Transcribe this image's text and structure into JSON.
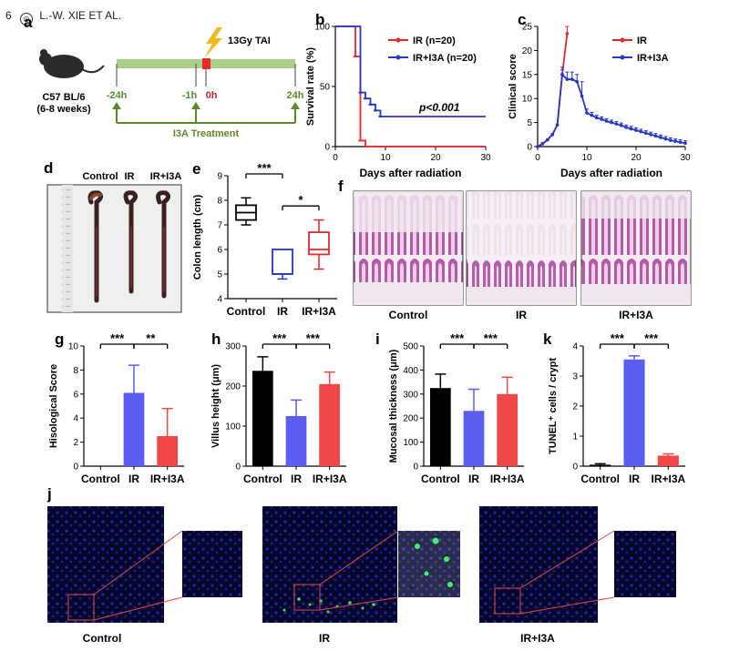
{
  "header": {
    "page_number": "6",
    "running_title": "L.-W. XIE ET AL."
  },
  "panels": {
    "a": {
      "letter": "a",
      "mouse_strain": "C57 BL/6",
      "mouse_age": "(6-8 weeks)",
      "event_label": "13Gy TAI",
      "time_labels": [
        "-24h",
        "-1h",
        "0h",
        "24h"
      ],
      "treatment_label": "I3A Treatment"
    },
    "d": {
      "letter": "d",
      "group_labels": [
        "Control",
        "IR",
        "IR+I3A"
      ]
    },
    "f": {
      "letter": "f",
      "group_labels": [
        "Control",
        "IR",
        "IR+I3A"
      ]
    },
    "j": {
      "letter": "j",
      "group_labels": [
        "Control",
        "IR",
        "IR+I3A"
      ]
    }
  },
  "chart_data": [
    {
      "panel": "b",
      "type": "line",
      "xlabel": "Days after radiation",
      "ylabel": "Survival rate (%)",
      "xlim": [
        0,
        30
      ],
      "ylim": [
        0,
        100
      ],
      "xticks": [
        0,
        10,
        20,
        30
      ],
      "yticks": [
        0,
        50,
        100
      ],
      "annotation": "p<0.001",
      "legend_position": "top-right",
      "series": [
        {
          "name": "IR (n=20)",
          "color": "#e8262b",
          "step": [
            [
              0,
              100
            ],
            [
              4,
              100
            ],
            [
              4,
              75
            ],
            [
              5,
              75
            ],
            [
              5,
              5
            ],
            [
              6,
              5
            ],
            [
              6,
              0
            ],
            [
              30,
              0
            ]
          ]
        },
        {
          "name": "IR+I3A (n=20)",
          "color": "#2437c9",
          "step": [
            [
              0,
              100
            ],
            [
              5,
              100
            ],
            [
              5,
              45
            ],
            [
              6,
              45
            ],
            [
              6,
              40
            ],
            [
              7,
              40
            ],
            [
              7,
              35
            ],
            [
              8,
              35
            ],
            [
              8,
              30
            ],
            [
              9,
              30
            ],
            [
              9,
              25
            ],
            [
              30,
              25
            ]
          ]
        }
      ]
    },
    {
      "panel": "c",
      "type": "line",
      "xlabel": "Days after radiation",
      "ylabel": "Clinical score",
      "xlim": [
        0,
        30
      ],
      "ylim": [
        0,
        25
      ],
      "xticks": [
        0,
        10,
        20,
        30
      ],
      "yticks": [
        0,
        5,
        10,
        15,
        20,
        25
      ],
      "legend_position": "top-right",
      "series": [
        {
          "name": "IR",
          "color": "#e8262b",
          "x": [
            0,
            1,
            2,
            3,
            4,
            5,
            6
          ],
          "y": [
            0,
            0.6,
            1.4,
            2.5,
            4.5,
            15,
            23.5
          ],
          "err": [
            0,
            0,
            0,
            0,
            0,
            1,
            1.5
          ]
        },
        {
          "name": "IR+I3A",
          "color": "#2437c9",
          "x": [
            0,
            1,
            2,
            3,
            4,
            5,
            6,
            7,
            8,
            9,
            10,
            11,
            12,
            13,
            14,
            15,
            16,
            17,
            18,
            19,
            20,
            21,
            22,
            23,
            24,
            25,
            26,
            27,
            28,
            29,
            30
          ],
          "y": [
            0,
            0.6,
            1.4,
            2.5,
            4.5,
            15,
            14,
            14,
            13.5,
            10.5,
            7,
            6.5,
            6,
            5.7,
            5.3,
            5,
            4.7,
            4.4,
            4,
            3.7,
            3.4,
            3.1,
            2.8,
            2.5,
            2.2,
            1.9,
            1.6,
            1.3,
            1.1,
            0.9,
            0.7
          ],
          "err": [
            0,
            0,
            0,
            0,
            0,
            1.5,
            1.5,
            1.5,
            1.5,
            3,
            0.8,
            0.6,
            0.5,
            0.5,
            0.5,
            0.5,
            0.5,
            0.5,
            0.5,
            0.5,
            0.5,
            0.5,
            0.5,
            0.5,
            0.5,
            0.5,
            0.5,
            0.5,
            0.5,
            0.5,
            0.5
          ]
        }
      ]
    },
    {
      "panel": "e",
      "type": "box",
      "ylabel": "Colon length (cm)",
      "ylim": [
        4,
        9
      ],
      "yticks": [
        4,
        5,
        6,
        7,
        8,
        9
      ],
      "categories": [
        "Control",
        "IR",
        "IR+I3A"
      ],
      "colors": [
        "#000000",
        "#2437c9",
        "#e8262b"
      ],
      "boxes": [
        {
          "min": 7.0,
          "q1": 7.2,
          "median": 7.5,
          "q3": 7.8,
          "max": 8.1
        },
        {
          "min": 4.8,
          "q1": 5.0,
          "median": 5.0,
          "q3": 6.0,
          "max": 6.0
        },
        {
          "min": 5.2,
          "q1": 5.8,
          "median": 6.0,
          "q3": 6.7,
          "max": 7.2
        }
      ],
      "significance": [
        {
          "from": 0,
          "to": 1,
          "label": "***"
        },
        {
          "from": 1,
          "to": 2,
          "label": "*"
        }
      ]
    },
    {
      "panel": "g",
      "type": "bar",
      "ylabel": "Hisological Score",
      "ylim": [
        0,
        10
      ],
      "yticks": [
        0,
        2,
        4,
        6,
        8,
        10
      ],
      "categories": [
        "Control",
        "IR",
        "IR+I3A"
      ],
      "colors": [
        "#000000",
        "#5b5ef0",
        "#f04848"
      ],
      "values": [
        0,
        6.1,
        2.5
      ],
      "errors": [
        0,
        2.3,
        2.3
      ],
      "significance": [
        {
          "from": 0,
          "to": 1,
          "label": "***"
        },
        {
          "from": 1,
          "to": 2,
          "label": "**"
        }
      ]
    },
    {
      "panel": "h",
      "type": "bar",
      "ylabel": "Villus height (μm)",
      "ylim": [
        0,
        300
      ],
      "yticks": [
        0,
        100,
        200,
        300
      ],
      "categories": [
        "Control",
        "IR",
        "IR+I3A"
      ],
      "colors": [
        "#000000",
        "#5b5ef0",
        "#f04848"
      ],
      "values": [
        238,
        125,
        205
      ],
      "errors": [
        35,
        40,
        30
      ],
      "significance": [
        {
          "from": 0,
          "to": 1,
          "label": "***"
        },
        {
          "from": 1,
          "to": 2,
          "label": "***"
        }
      ]
    },
    {
      "panel": "i",
      "type": "bar",
      "ylabel": "Mucosal thickness (μm)",
      "ylim": [
        0,
        500
      ],
      "yticks": [
        0,
        100,
        200,
        300,
        400,
        500
      ],
      "categories": [
        "Control",
        "IR",
        "IR+I3A"
      ],
      "colors": [
        "#000000",
        "#5b5ef0",
        "#f04848"
      ],
      "values": [
        325,
        230,
        300
      ],
      "errors": [
        58,
        90,
        70
      ],
      "significance": [
        {
          "from": 0,
          "to": 1,
          "label": "***"
        },
        {
          "from": 1,
          "to": 2,
          "label": "***"
        }
      ]
    },
    {
      "panel": "k",
      "type": "bar",
      "ylabel": "TUNEL⁺ cells / crypt",
      "ylim": [
        0,
        4
      ],
      "yticks": [
        0,
        1,
        2,
        3,
        4
      ],
      "categories": [
        "Control",
        "IR",
        "IR+I3A"
      ],
      "colors": [
        "#000000",
        "#5b5ef0",
        "#f04848"
      ],
      "values": [
        0.05,
        3.55,
        0.35
      ],
      "errors": [
        0.03,
        0.12,
        0.06
      ],
      "significance": [
        {
          "from": 0,
          "to": 1,
          "label": "***"
        },
        {
          "from": 1,
          "to": 2,
          "label": "***"
        }
      ]
    }
  ]
}
